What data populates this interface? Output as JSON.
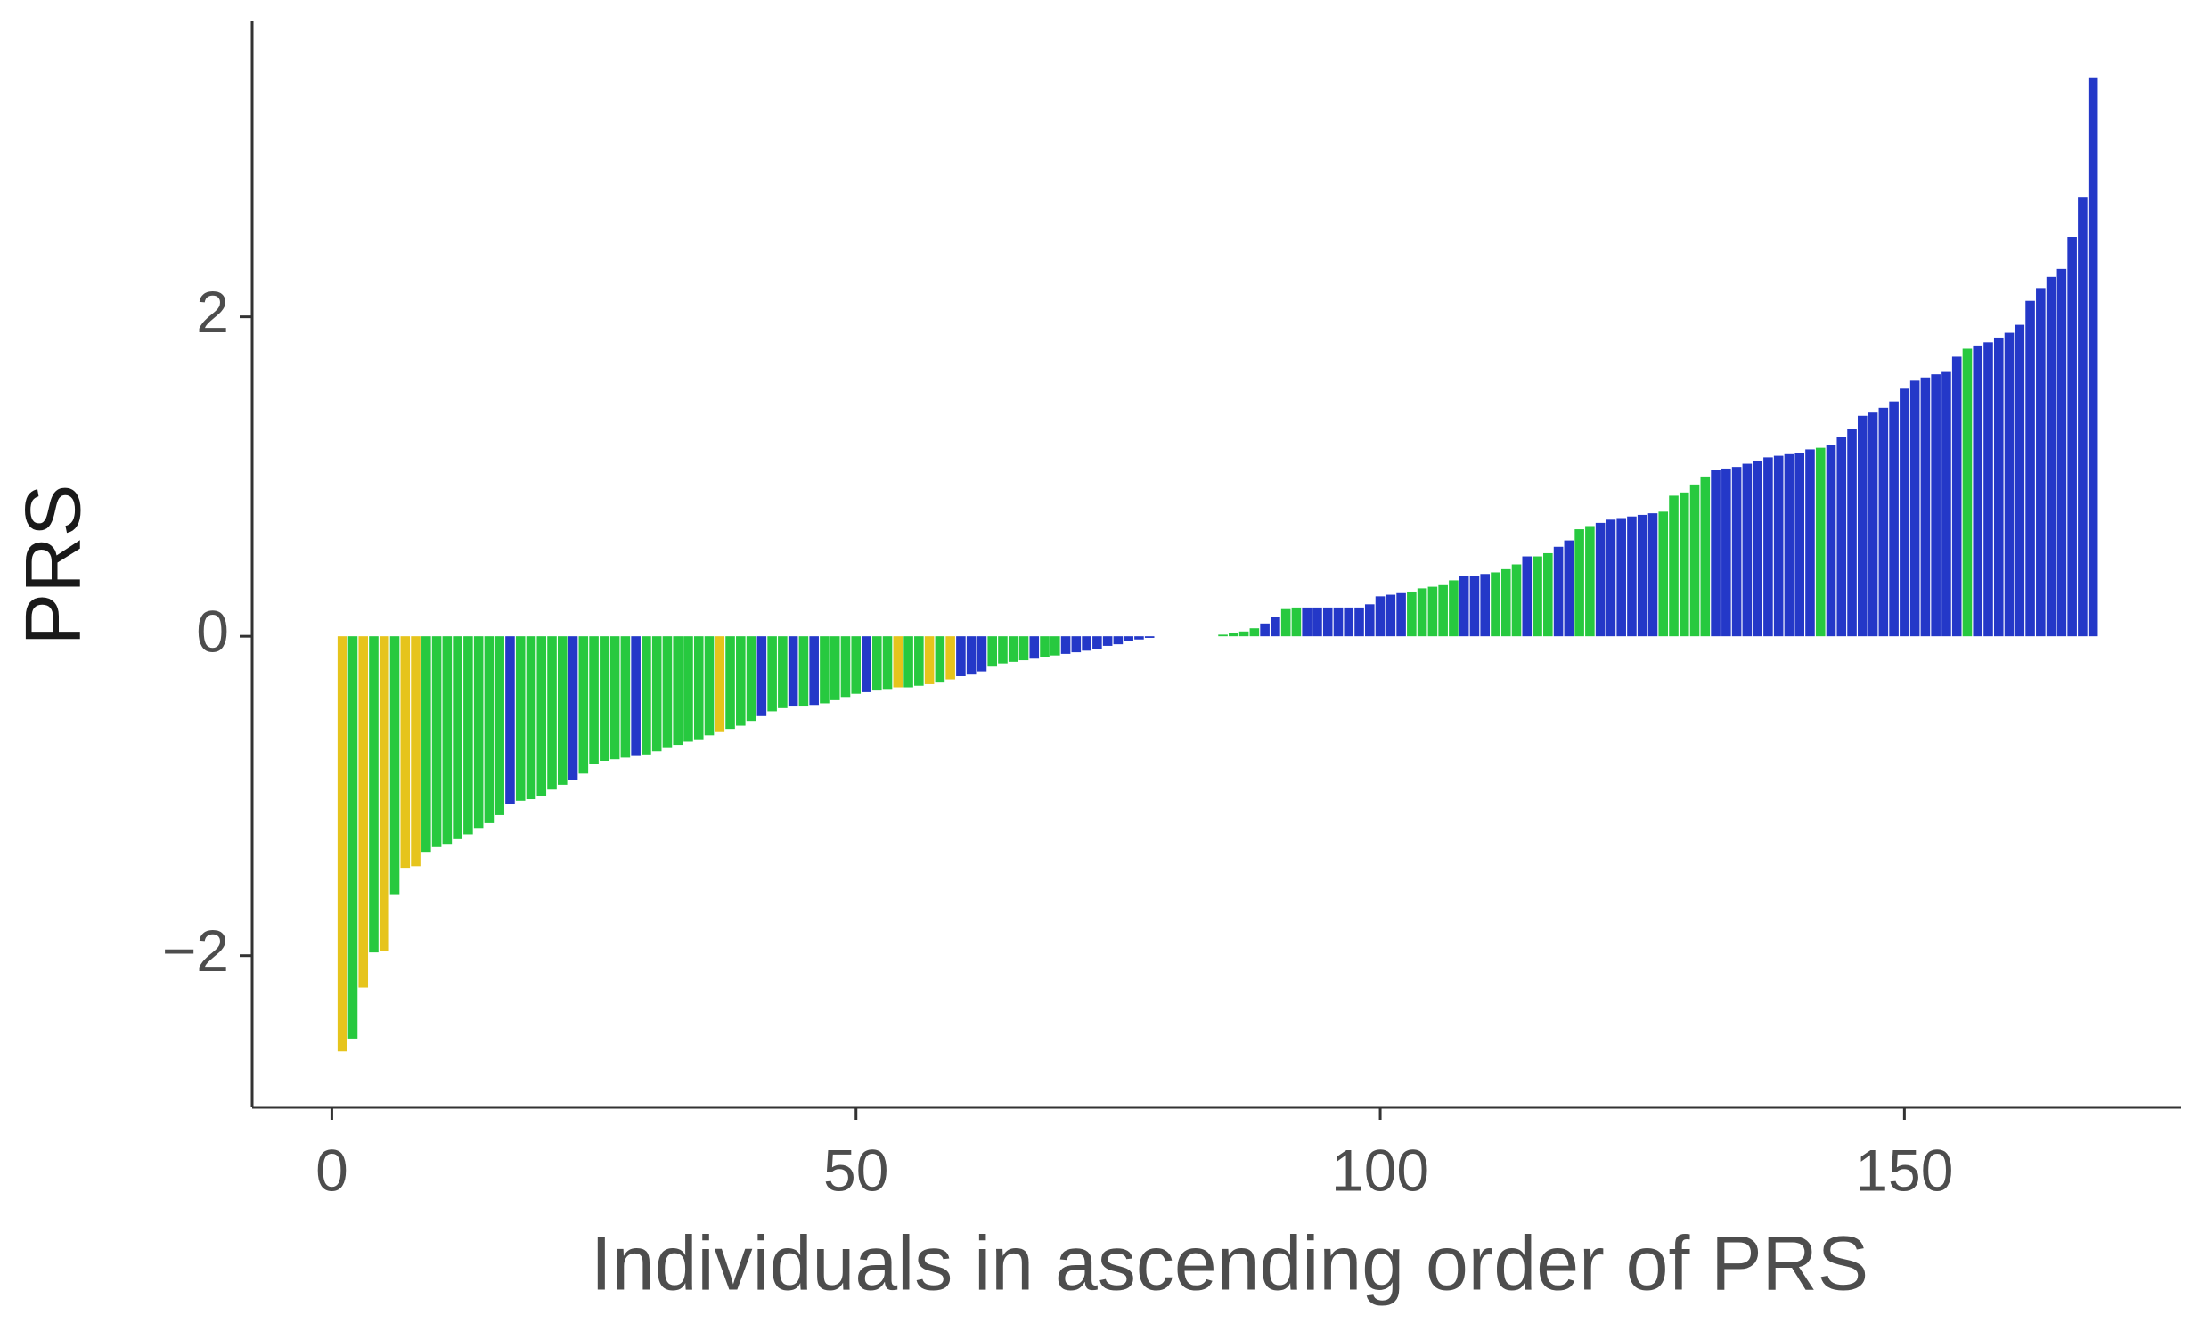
{
  "chart_data": {
    "type": "bar",
    "x_label": "Individuals in ascending order of PRS",
    "y_label": "PRS",
    "x": [
      1,
      2,
      3,
      4,
      5,
      6,
      7,
      8,
      9,
      10,
      11,
      12,
      13,
      14,
      15,
      16,
      17,
      18,
      19,
      20,
      21,
      22,
      23,
      24,
      25,
      26,
      27,
      28,
      29,
      30,
      31,
      32,
      33,
      34,
      35,
      36,
      37,
      38,
      39,
      40,
      41,
      42,
      43,
      44,
      45,
      46,
      47,
      48,
      49,
      50,
      51,
      52,
      53,
      54,
      55,
      56,
      57,
      58,
      59,
      60,
      61,
      62,
      63,
      64,
      65,
      66,
      67,
      68,
      69,
      70,
      71,
      72,
      73,
      74,
      75,
      76,
      77,
      78,
      79,
      80,
      81,
      82,
      83,
      84,
      85,
      86,
      87,
      88,
      89,
      90,
      91,
      92,
      93,
      94,
      95,
      96,
      97,
      98,
      99,
      100,
      101,
      102,
      103,
      104,
      105,
      106,
      107,
      108,
      109,
      110,
      111,
      112,
      113,
      114,
      115,
      116,
      117,
      118,
      119,
      120,
      121,
      122,
      123,
      124,
      125,
      126,
      127,
      128,
      129,
      130,
      131,
      132,
      133,
      134,
      135,
      136,
      137,
      138,
      139,
      140,
      141,
      142,
      143,
      144,
      145,
      146,
      147,
      148,
      149,
      150,
      151,
      152,
      153,
      154,
      155,
      156,
      157,
      158,
      159,
      160,
      161,
      162,
      163,
      164,
      165,
      166,
      167,
      168
    ],
    "values": [
      -2.6,
      -2.52,
      -2.2,
      -1.98,
      -1.97,
      -1.62,
      -1.45,
      -1.44,
      -1.35,
      -1.32,
      -1.3,
      -1.27,
      -1.24,
      -1.2,
      -1.17,
      -1.12,
      -1.05,
      -1.03,
      -1.02,
      -1.0,
      -0.96,
      -0.93,
      -0.9,
      -0.86,
      -0.8,
      -0.78,
      -0.77,
      -0.76,
      -0.75,
      -0.74,
      -0.72,
      -0.7,
      -0.68,
      -0.66,
      -0.65,
      -0.62,
      -0.6,
      -0.58,
      -0.56,
      -0.53,
      -0.5,
      -0.47,
      -0.45,
      -0.44,
      -0.44,
      -0.43,
      -0.42,
      -0.4,
      -0.38,
      -0.36,
      -0.35,
      -0.34,
      -0.33,
      -0.32,
      -0.32,
      -0.31,
      -0.3,
      -0.29,
      -0.27,
      -0.25,
      -0.24,
      -0.22,
      -0.19,
      -0.17,
      -0.16,
      -0.15,
      -0.14,
      -0.13,
      -0.12,
      -0.11,
      -0.1,
      -0.09,
      -0.08,
      -0.06,
      -0.05,
      -0.03,
      -0.02,
      -0.01,
      0,
      0,
      0,
      0,
      0,
      0,
      0.01,
      0.02,
      0.03,
      0.05,
      0.08,
      0.12,
      0.17,
      0.18,
      0.18,
      0.18,
      0.18,
      0.18,
      0.18,
      0.18,
      0.2,
      0.25,
      0.26,
      0.27,
      0.28,
      0.3,
      0.31,
      0.32,
      0.35,
      0.38,
      0.38,
      0.39,
      0.4,
      0.42,
      0.45,
      0.5,
      0.5,
      0.52,
      0.56,
      0.6,
      0.67,
      0.69,
      0.71,
      0.73,
      0.74,
      0.75,
      0.76,
      0.77,
      0.78,
      0.88,
      0.9,
      0.95,
      1.0,
      1.04,
      1.05,
      1.06,
      1.08,
      1.1,
      1.12,
      1.13,
      1.14,
      1.15,
      1.17,
      1.18,
      1.2,
      1.25,
      1.3,
      1.38,
      1.4,
      1.43,
      1.47,
      1.55,
      1.6,
      1.62,
      1.64,
      1.66,
      1.75,
      1.8,
      1.82,
      1.84,
      1.87,
      1.9,
      1.95,
      2.1,
      2.18,
      2.25,
      2.3,
      2.5,
      2.75,
      3.5
    ],
    "colors": [
      "#e6c41c",
      "#27c93f",
      "#e6c41c",
      "#27c93f",
      "#e6c41c",
      "#27c93f",
      "#e6c41c",
      "#e6c41c",
      "#27c93f",
      "#27c93f",
      "#27c93f",
      "#27c93f",
      "#27c93f",
      "#27c93f",
      "#27c93f",
      "#27c93f",
      "#2438c8",
      "#27c93f",
      "#27c93f",
      "#27c93f",
      "#27c93f",
      "#27c93f",
      "#2438c8",
      "#27c93f",
      "#27c93f",
      "#27c93f",
      "#27c93f",
      "#27c93f",
      "#2438c8",
      "#27c93f",
      "#27c93f",
      "#27c93f",
      "#27c93f",
      "#27c93f",
      "#27c93f",
      "#27c93f",
      "#e6c41c",
      "#27c93f",
      "#27c93f",
      "#27c93f",
      "#2438c8",
      "#27c93f",
      "#27c93f",
      "#2438c8",
      "#27c93f",
      "#2438c8",
      "#27c93f",
      "#27c93f",
      "#27c93f",
      "#27c93f",
      "#2438c8",
      "#27c93f",
      "#27c93f",
      "#e6c41c",
      "#27c93f",
      "#27c93f",
      "#e6c41c",
      "#27c93f",
      "#e6c41c",
      "#2438c8",
      "#2438c8",
      "#2438c8",
      "#27c93f",
      "#27c93f",
      "#27c93f",
      "#27c93f",
      "#2438c8",
      "#27c93f",
      "#27c93f",
      "#2438c8",
      "#2438c8",
      "#2438c8",
      "#2438c8",
      "#2438c8",
      "#2438c8",
      "#2438c8",
      "#2438c8",
      "#2438c8",
      "#27c93f",
      "#27c93f",
      "#27c93f",
      "#27c93f",
      "#27c93f",
      "#27c93f",
      "#27c93f",
      "#27c93f",
      "#27c93f",
      "#27c93f",
      "#2438c8",
      "#2438c8",
      "#27c93f",
      "#27c93f",
      "#2438c8",
      "#2438c8",
      "#2438c8",
      "#2438c8",
      "#2438c8",
      "#2438c8",
      "#2438c8",
      "#2438c8",
      "#2438c8",
      "#2438c8",
      "#27c93f",
      "#27c93f",
      "#27c93f",
      "#27c93f",
      "#27c93f",
      "#2438c8",
      "#2438c8",
      "#2438c8",
      "#27c93f",
      "#27c93f",
      "#27c93f",
      "#2438c8",
      "#27c93f",
      "#27c93f",
      "#2438c8",
      "#2438c8",
      "#27c93f",
      "#27c93f",
      "#2438c8",
      "#2438c8",
      "#2438c8",
      "#2438c8",
      "#2438c8",
      "#2438c8",
      "#27c93f",
      "#27c93f",
      "#27c93f",
      "#27c93f",
      "#27c93f",
      "#2438c8",
      "#2438c8",
      "#2438c8",
      "#2438c8",
      "#2438c8",
      "#2438c8",
      "#2438c8",
      "#2438c8",
      "#2438c8",
      "#2438c8",
      "#27c93f",
      "#2438c8",
      "#2438c8",
      "#2438c8",
      "#2438c8",
      "#2438c8",
      "#2438c8",
      "#2438c8",
      "#2438c8",
      "#2438c8",
      "#2438c8",
      "#2438c8",
      "#2438c8",
      "#2438c8",
      "#27c93f",
      "#2438c8",
      "#2438c8",
      "#2438c8",
      "#2438c8",
      "#2438c8",
      "#2438c8",
      "#2438c8",
      "#2438c8",
      "#2438c8",
      "#2438c8",
      "#2438c8",
      "#2438c8"
    ],
    "xlim": [
      -7.6,
      176.4
    ],
    "xticks": [
      0,
      50,
      100,
      150
    ],
    "ylim": [
      -2.95,
      3.85
    ],
    "yticks": [
      {
        "value": -2,
        "label": "−2"
      },
      0,
      2
    ],
    "grid": false
  }
}
